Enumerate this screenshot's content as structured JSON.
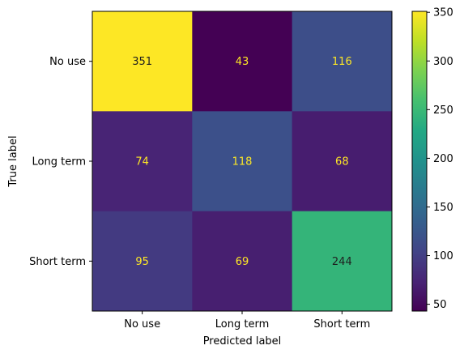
{
  "chart_data": {
    "type": "heatmap",
    "title": "",
    "xlabel": "Predicted label",
    "ylabel": "True label",
    "x_categories": [
      "No use",
      "Long term",
      "Short term"
    ],
    "y_categories": [
      "No use",
      "Long term",
      "Short term"
    ],
    "values": [
      [
        351,
        43,
        116
      ],
      [
        74,
        118,
        68
      ],
      [
        95,
        69,
        244
      ]
    ],
    "colormap": "viridis",
    "value_range": [
      43,
      351
    ],
    "colorbar_ticks": [
      50,
      100,
      150,
      200,
      250,
      300,
      350
    ],
    "colorbar_range": [
      43,
      351
    ],
    "grid": false
  }
}
